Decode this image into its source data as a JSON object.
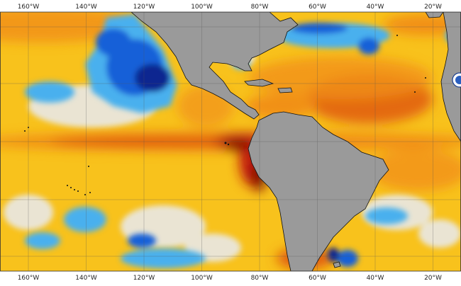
{
  "map": {
    "lon_labels_top": [
      "160°W",
      "140°W",
      "120°W",
      "100°W",
      "80°W",
      "60°W",
      "40°W",
      "20°W"
    ],
    "lon_labels_bottom": [
      "160°W",
      "140°W",
      "120°W",
      "100°W",
      "80°W",
      "60°W",
      "40°W",
      "20°W"
    ],
    "lon_range": [
      -170,
      -10
    ],
    "colors": {
      "land": "#9a9a9a",
      "warm_base": "#f8c21c",
      "warm_mid": "#f19018",
      "warm_strong": "#e05a10",
      "hot": "#c21a0a",
      "very_hot": "#7a0a05",
      "neutral": "#e8e8e8",
      "cool": "#49b0ee",
      "cold": "#1460d8",
      "very_cold": "#0a2890",
      "coastline": "#111111",
      "grid": "#555555"
    },
    "features": {
      "equatorial_warm_tongue": "strong",
      "northeast_pacific_anomaly": "cold",
      "peru_coast_anomaly": "very warm"
    }
  }
}
